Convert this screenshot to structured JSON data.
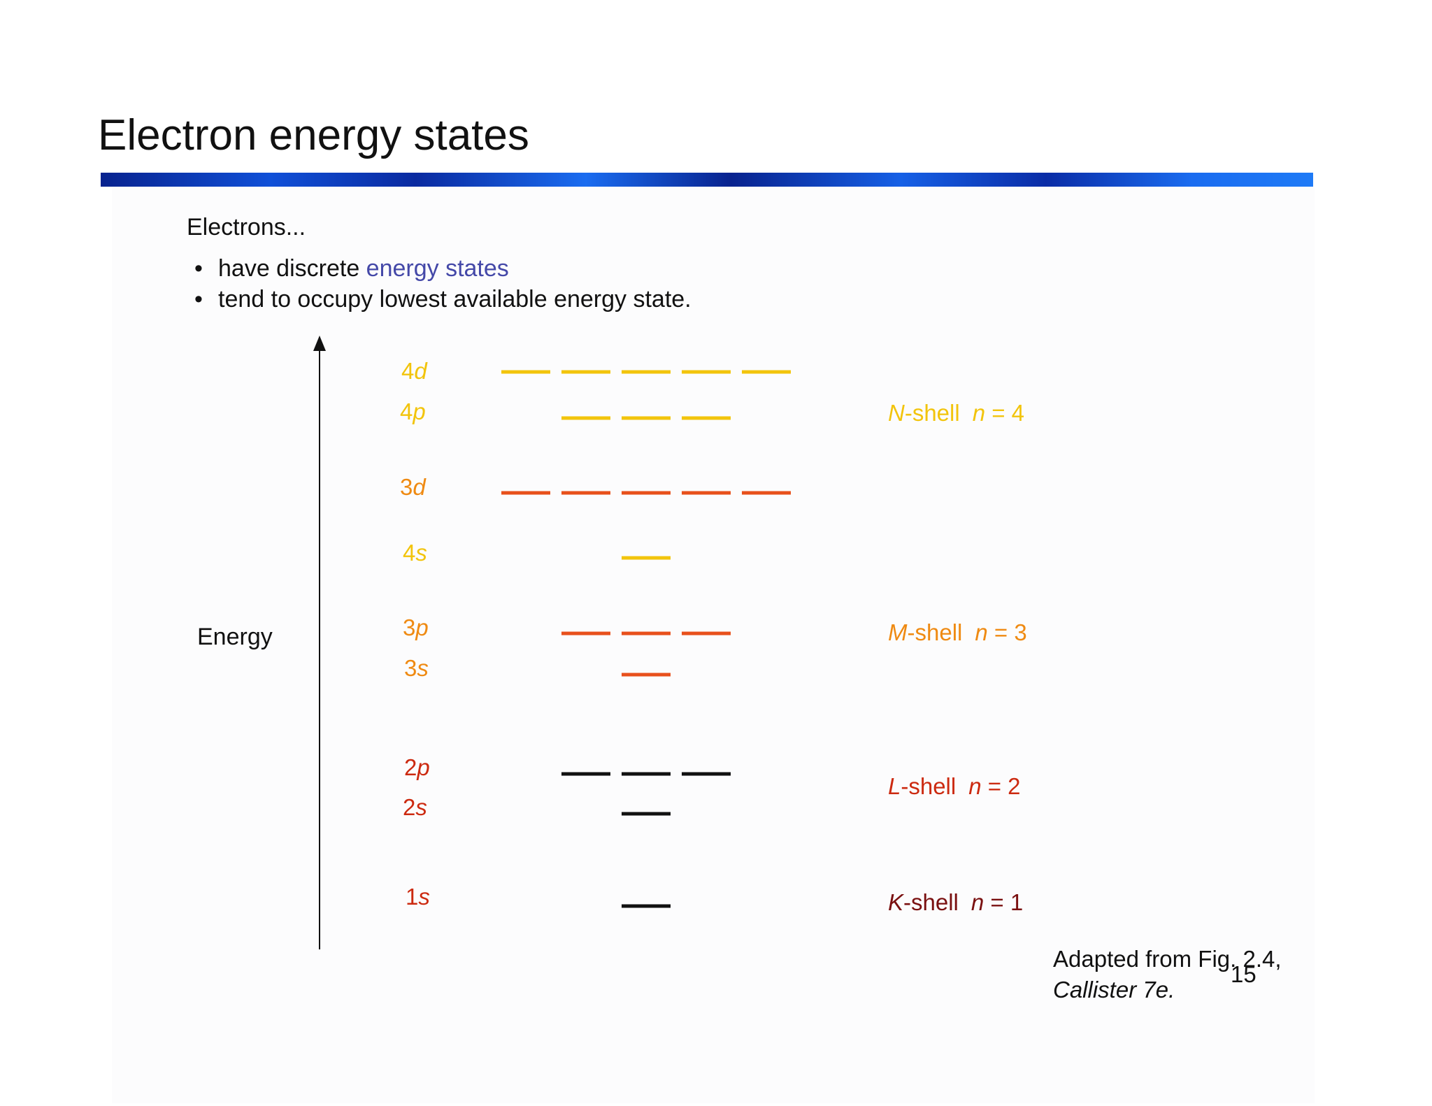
{
  "title": "Electron energy states",
  "intro": "Electrons...",
  "bullets": [
    {
      "prefix": "have discrete ",
      "highlight": "energy states",
      "suffix": ""
    },
    {
      "prefix": "tend to occupy lowest available energy state.",
      "highlight": "",
      "suffix": ""
    }
  ],
  "axis_label": "Energy",
  "colors": {
    "n4": "#f2c40c",
    "n3": "#e8501c",
    "n3_label": "#ef8a12",
    "n2_label": "#cc2a10",
    "n1_label": "#7a1010",
    "black": "#111111",
    "title_bar": "#1050d8"
  },
  "levels": [
    {
      "label_num": "4",
      "label_sub": "d",
      "count": 5,
      "color": "n4",
      "label_color": "n4"
    },
    {
      "label_num": "4",
      "label_sub": "p",
      "count": 3,
      "color": "n4",
      "label_color": "n4"
    },
    {
      "label_num": "3",
      "label_sub": "d",
      "count": 5,
      "color": "n3",
      "label_color": "n3_label"
    },
    {
      "label_num": "4",
      "label_sub": "s",
      "count": 1,
      "color": "n4",
      "label_color": "n4"
    },
    {
      "label_num": "3",
      "label_sub": "p",
      "count": 3,
      "color": "n3",
      "label_color": "n3_label"
    },
    {
      "label_num": "3",
      "label_sub": "s",
      "count": 1,
      "color": "n3",
      "label_color": "n3_label"
    },
    {
      "label_num": "2",
      "label_sub": "p",
      "count": 3,
      "color": "black",
      "label_color": "n2_label"
    },
    {
      "label_num": "2",
      "label_sub": "s",
      "count": 1,
      "color": "black",
      "label_color": "n2_label"
    },
    {
      "label_num": "1",
      "label_sub": "s",
      "count": 1,
      "color": "black",
      "label_color": "n2_label"
    }
  ],
  "shells": [
    {
      "letter": "N",
      "suffix": "-shell",
      "n_var": "n",
      "n_eq": " = 4",
      "color": "n4"
    },
    {
      "letter": "M",
      "suffix": "-shell",
      "n_var": "n",
      "n_eq": " = 3",
      "color": "n3_label"
    },
    {
      "letter": "L",
      "suffix": "-shell",
      "n_var": "n",
      "n_eq": " = 2",
      "color": "n2_label"
    },
    {
      "letter": "K",
      "suffix": "-shell",
      "n_var": "n",
      "n_eq": " = 1",
      "color": "n1_label"
    }
  ],
  "caption_line1": "Adapted from Fig. 2.4,",
  "caption_line2": "Callister 7e.",
  "page_number": "15"
}
